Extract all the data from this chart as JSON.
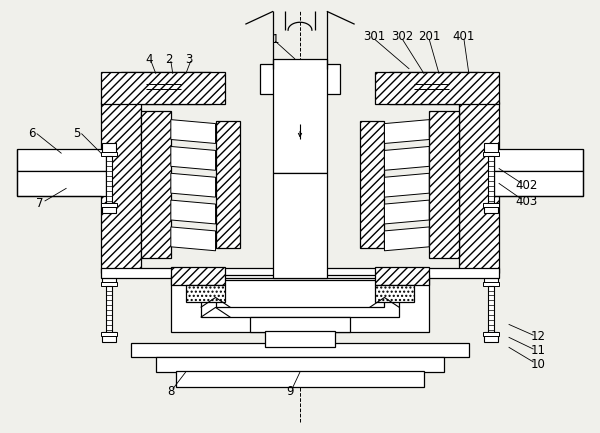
{
  "bg_color": "#f0f0eb",
  "figsize": [
    6.0,
    4.33
  ],
  "lw": 0.9
}
